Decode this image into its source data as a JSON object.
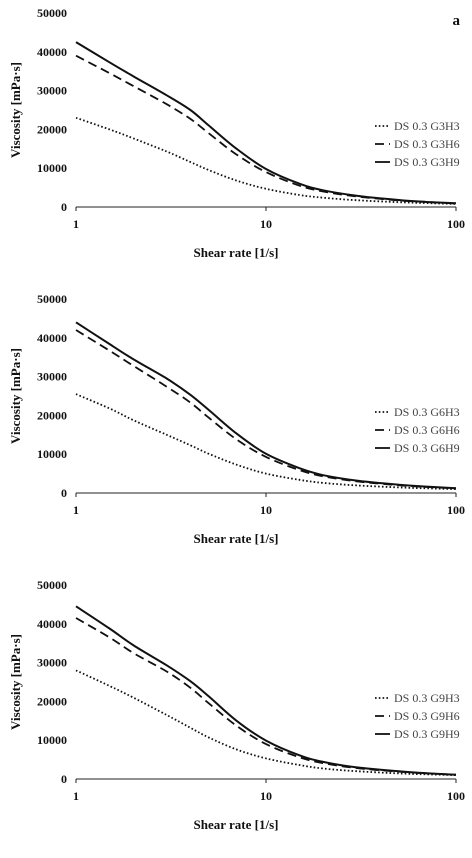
{
  "chart_data": [
    {
      "type": "line",
      "panel_label": "a",
      "xscale": "log",
      "xlim": [
        1,
        100
      ],
      "ylim": [
        0,
        50000
      ],
      "xlabel": "Shear rate [1/s]",
      "ylabel": "Viscosity [mPa·s]",
      "x_ticks": [
        "1",
        "10",
        "100"
      ],
      "y_ticks": [
        "0",
        "10000",
        "20000",
        "30000",
        "40000",
        "50000"
      ],
      "legend_position": "right",
      "x": [
        1,
        1.5,
        2,
        3,
        4,
        5,
        7,
        10,
        15,
        20,
        30,
        50,
        70,
        100
      ],
      "series": [
        {
          "name": "DS 0.3 G3H3",
          "style": "dotted",
          "values": [
            23000,
            20000,
            17700,
            14300,
            11600,
            9500,
            6800,
            4700,
            3100,
            2400,
            1750,
            1250,
            1000,
            800
          ]
        },
        {
          "name": "DS 0.3 G3H6",
          "style": "dashed",
          "values": [
            39000,
            34500,
            31200,
            26500,
            22700,
            19000,
            13500,
            9000,
            5500,
            4000,
            2700,
            1700,
            1300,
            900
          ]
        },
        {
          "name": "DS 0.3 G3H9",
          "style": "solid",
          "values": [
            42500,
            37300,
            33700,
            28800,
            25000,
            21000,
            15000,
            9800,
            6000,
            4300,
            2900,
            1800,
            1300,
            950
          ]
        }
      ]
    },
    {
      "type": "line",
      "xscale": "log",
      "xlim": [
        1,
        100
      ],
      "ylim": [
        0,
        50000
      ],
      "xlabel": "Shear rate [1/s]",
      "ylabel": "Viscosity [mPa·s]",
      "x_ticks": [
        "1",
        "10",
        "100"
      ],
      "y_ticks": [
        "0",
        "10000",
        "20000",
        "30000",
        "40000",
        "50000"
      ],
      "legend_position": "right",
      "x": [
        1,
        1.5,
        2,
        3,
        4,
        5,
        7,
        10,
        15,
        20,
        30,
        50,
        70,
        100
      ],
      "series": [
        {
          "name": "DS 0.3 G6H3",
          "style": "dotted",
          "values": [
            25500,
            21800,
            18800,
            15000,
            12300,
            10100,
            7300,
            5000,
            3400,
            2600,
            1950,
            1450,
            1200,
            1000
          ]
        },
        {
          "name": "DS 0.3 G6H6",
          "style": "dashed",
          "values": [
            42000,
            36700,
            32800,
            27400,
            23300,
            19400,
            13800,
            9300,
            5900,
            4300,
            3000,
            2000,
            1550,
            1200
          ]
        },
        {
          "name": "DS 0.3 G6H9",
          "style": "solid",
          "values": [
            44000,
            38400,
            34500,
            29500,
            25300,
            21400,
            15300,
            10100,
            6400,
            4600,
            3200,
            2150,
            1650,
            1250
          ]
        }
      ]
    },
    {
      "type": "line",
      "xscale": "log",
      "xlim": [
        1,
        100
      ],
      "ylim": [
        0,
        50000
      ],
      "xlabel": "Shear rate [1/s]",
      "ylabel": "Viscosity [mPa·s]",
      "x_ticks": [
        "1",
        "10",
        "100"
      ],
      "y_ticks": [
        "0",
        "10000",
        "20000",
        "30000",
        "40000",
        "50000"
      ],
      "legend_position": "right",
      "x": [
        1,
        1.5,
        2,
        3,
        4,
        5,
        7,
        10,
        15,
        20,
        30,
        50,
        70,
        100
      ],
      "series": [
        {
          "name": "DS 0.3 G9H3",
          "style": "dotted",
          "values": [
            28000,
            24000,
            21000,
            16500,
            13200,
            10700,
            7600,
            5300,
            3600,
            2700,
            2000,
            1450,
            1200,
            1000
          ]
        },
        {
          "name": "DS 0.3 G9H6",
          "style": "dashed",
          "values": [
            41500,
            36500,
            32500,
            27700,
            23500,
            19500,
            13700,
            9000,
            5600,
            4100,
            2800,
            1900,
            1450,
            1100
          ]
        },
        {
          "name": "DS 0.3 G9H9",
          "style": "solid",
          "values": [
            44500,
            38800,
            34500,
            29300,
            25200,
            21300,
            15000,
            9900,
            6100,
            4400,
            3000,
            2000,
            1500,
            1100
          ]
        }
      ]
    }
  ]
}
